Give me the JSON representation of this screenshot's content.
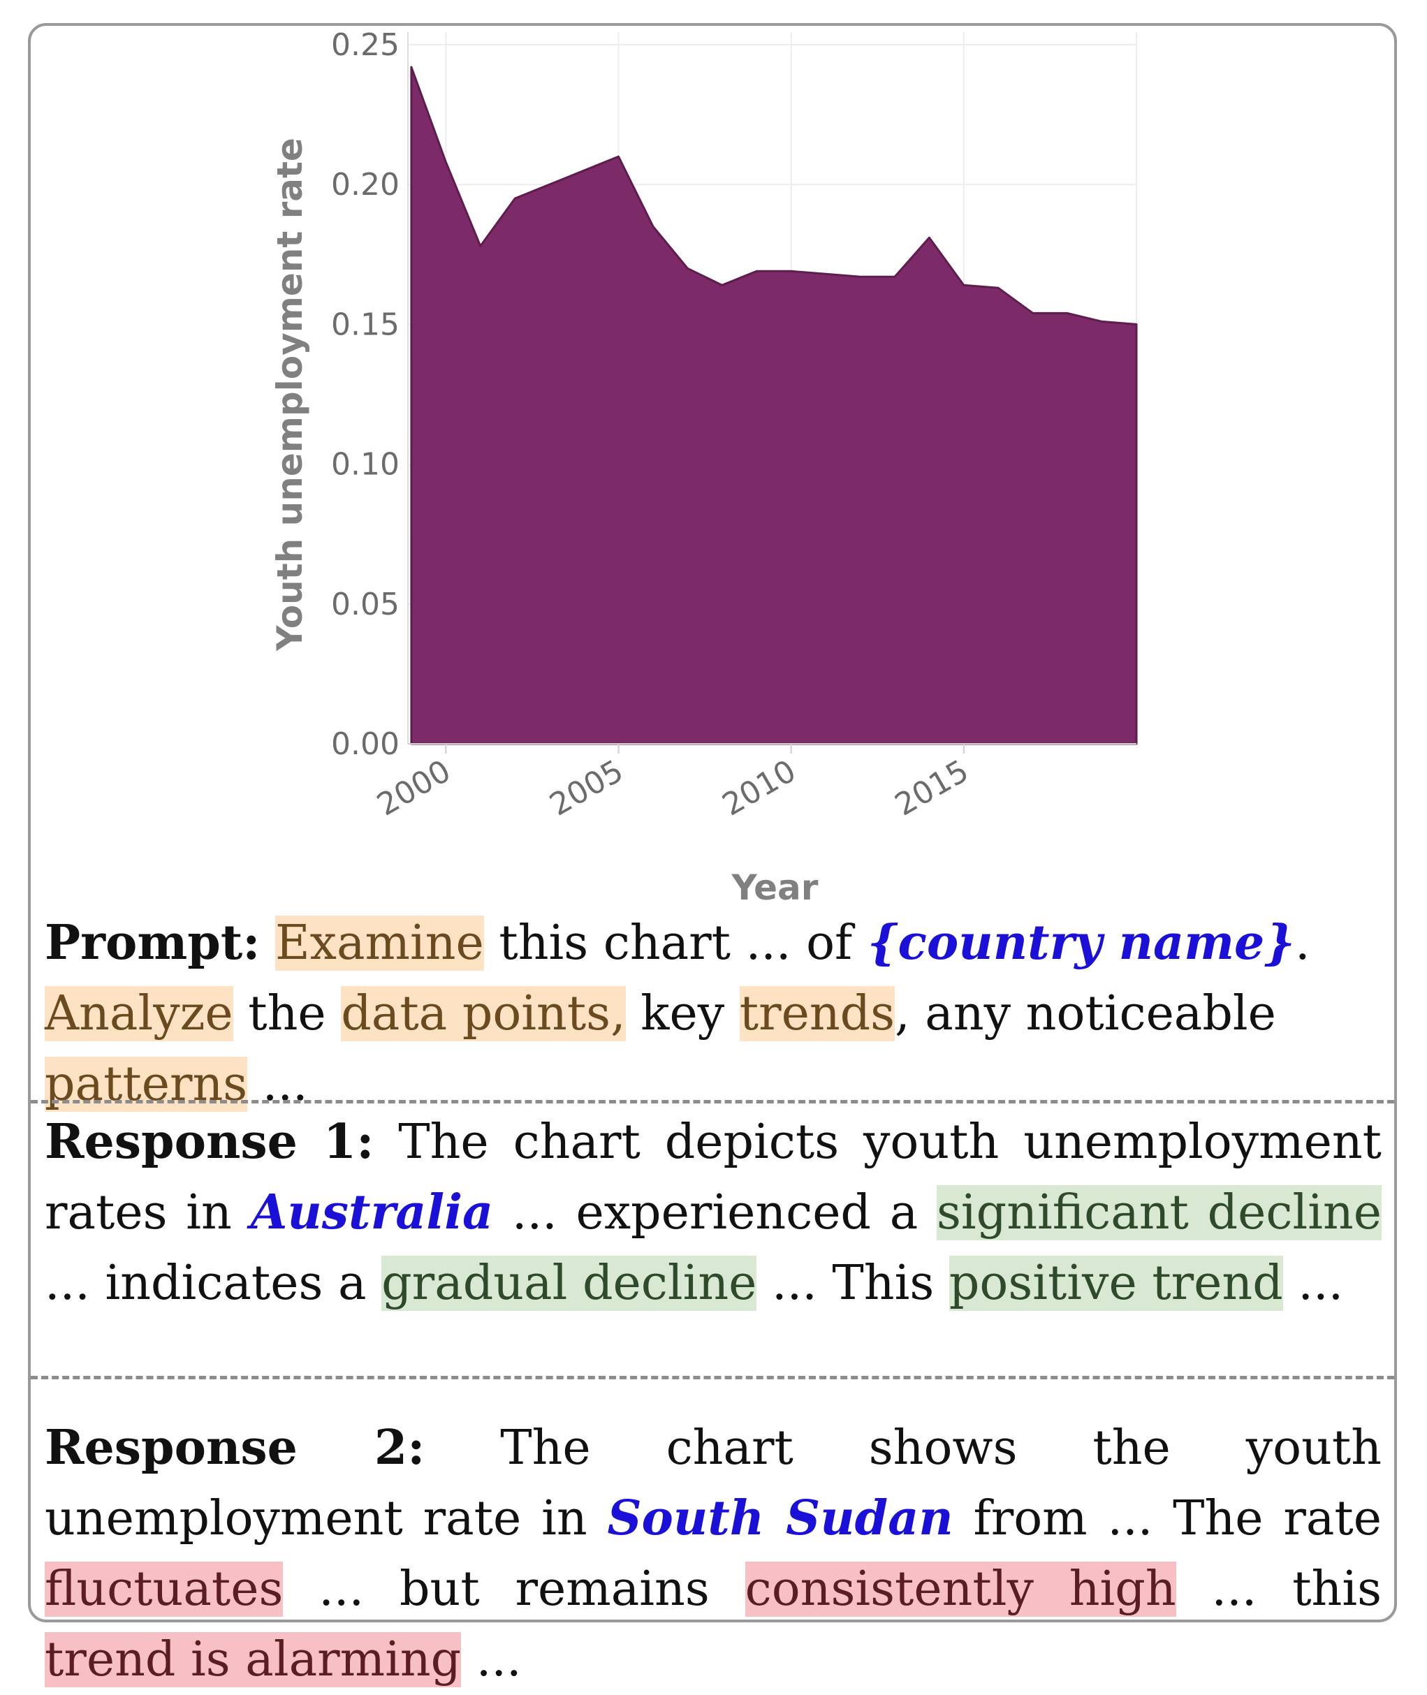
{
  "chart_data": {
    "type": "area",
    "xlabel": "Year",
    "ylabel": "Youth unemployment rate",
    "x": [
      1999,
      2000,
      2001,
      2002,
      2003,
      2004,
      2005,
      2006,
      2007,
      2008,
      2009,
      2010,
      2011,
      2012,
      2013,
      2014,
      2015,
      2016,
      2017,
      2018,
      2019,
      2020
    ],
    "values": [
      0.242,
      0.208,
      0.178,
      0.195,
      0.2,
      0.205,
      0.21,
      0.185,
      0.17,
      0.164,
      0.169,
      0.169,
      0.168,
      0.167,
      0.167,
      0.181,
      0.164,
      0.163,
      0.154,
      0.154,
      0.151,
      0.15
    ],
    "xlim": [
      1998.9,
      2020
    ],
    "ylim": [
      0,
      0.25
    ],
    "x_ticks": [
      "2000",
      "2005",
      "2010",
      "2015"
    ],
    "y_ticks": [
      "0.00",
      "0.05",
      "0.10",
      "0.15",
      "0.20",
      "0.25"
    ],
    "fill_color": "#7d2a68",
    "grid": true
  },
  "prompt": {
    "label": "Prompt:",
    "text_examine": "Examine",
    "text_1": " this chart ... of ",
    "country": "{country name}",
    "text_2": ". ",
    "text_analyze": "Analyze",
    "text_3": " the ",
    "text_data_points": "data points,",
    "text_4": " key ",
    "text_trends": "trends",
    "text_5": ", any noticeable ",
    "text_patterns": "patterns",
    "text_6": " ..."
  },
  "response_1": {
    "label": "Response 1:",
    "text_1": " The chart depicts youth unemployment rates in ",
    "country": "Australia",
    "text_2": " ... experienced a ",
    "hl_1": "significant decline",
    "text_3": " ... indicates a ",
    "hl_2": "gradual decline",
    "text_4": " ... This ",
    "hl_3": "positive trend",
    "text_5": " ..."
  },
  "response_2": {
    "label": "Response 2:",
    "text_1": " The chart shows the youth unemployment rate in ",
    "country": "South Sudan",
    "text_2": " from ... The rate ",
    "hl_1": "fluctuates",
    "text_3": " ... but remains ",
    "hl_2": "consistently high",
    "text_4": " ... this ",
    "hl_3": "trend is alarming",
    "text_5": " ..."
  }
}
